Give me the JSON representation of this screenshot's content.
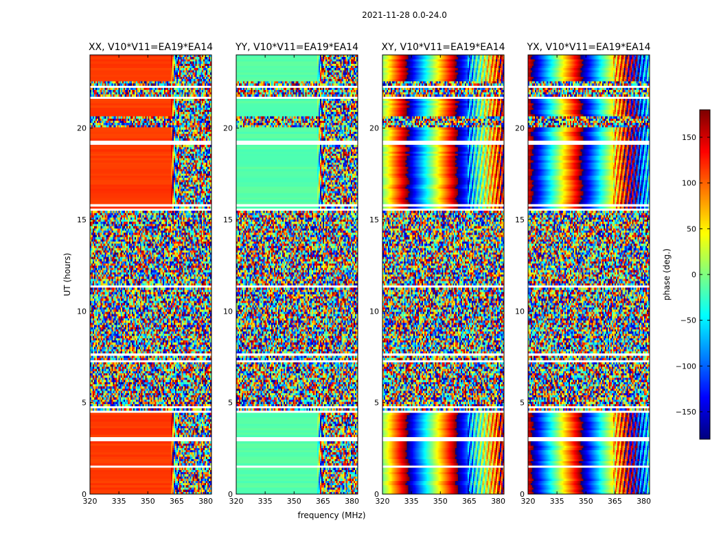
{
  "chart_data": {
    "type": "heatmap",
    "suptitle": "2021-11-28 0.0-24.0",
    "xlabel": "frequency (MHz)",
    "ylabel": "UT (hours)",
    "xlim": [
      320,
      383
    ],
    "ylim": [
      0,
      24
    ],
    "xticks": [
      320,
      335,
      350,
      365,
      380
    ],
    "yticks": [
      0,
      5,
      10,
      15,
      20
    ],
    "colorbar": {
      "label": "phase (deg.)",
      "range": [
        -180,
        180
      ],
      "ticks": [
        -150,
        -100,
        -50,
        0,
        50,
        100,
        150
      ],
      "tick_labels": [
        "−150",
        "−100",
        "−50",
        "0",
        "50",
        "100",
        "150"
      ],
      "colormap": "jet"
    },
    "panels": [
      {
        "title": "XX, V10*V11=EA19*EA14",
        "pattern": "smooth",
        "base_phase": 115
      },
      {
        "title": "YY, V10*V11=EA19*EA14",
        "pattern": "smooth",
        "base_phase": -15
      },
      {
        "title": "XY, V10*V11=EA19*EA14",
        "pattern": "banded",
        "base_phase": 0
      },
      {
        "title": "YX, V10*V11=EA19*EA14",
        "pattern": "banded",
        "base_phase": 150
      }
    ],
    "noisy_intervals_hours": [
      [
        4.5,
        15.6
      ],
      [
        20.1,
        20.6
      ],
      [
        21.6,
        22.6
      ]
    ],
    "flagged_rows_hours": [
      1.5,
      3.0,
      4.5,
      4.7,
      7.3,
      7.6,
      11.3,
      15.6,
      15.8,
      19.2,
      21.7,
      22.3
    ]
  }
}
